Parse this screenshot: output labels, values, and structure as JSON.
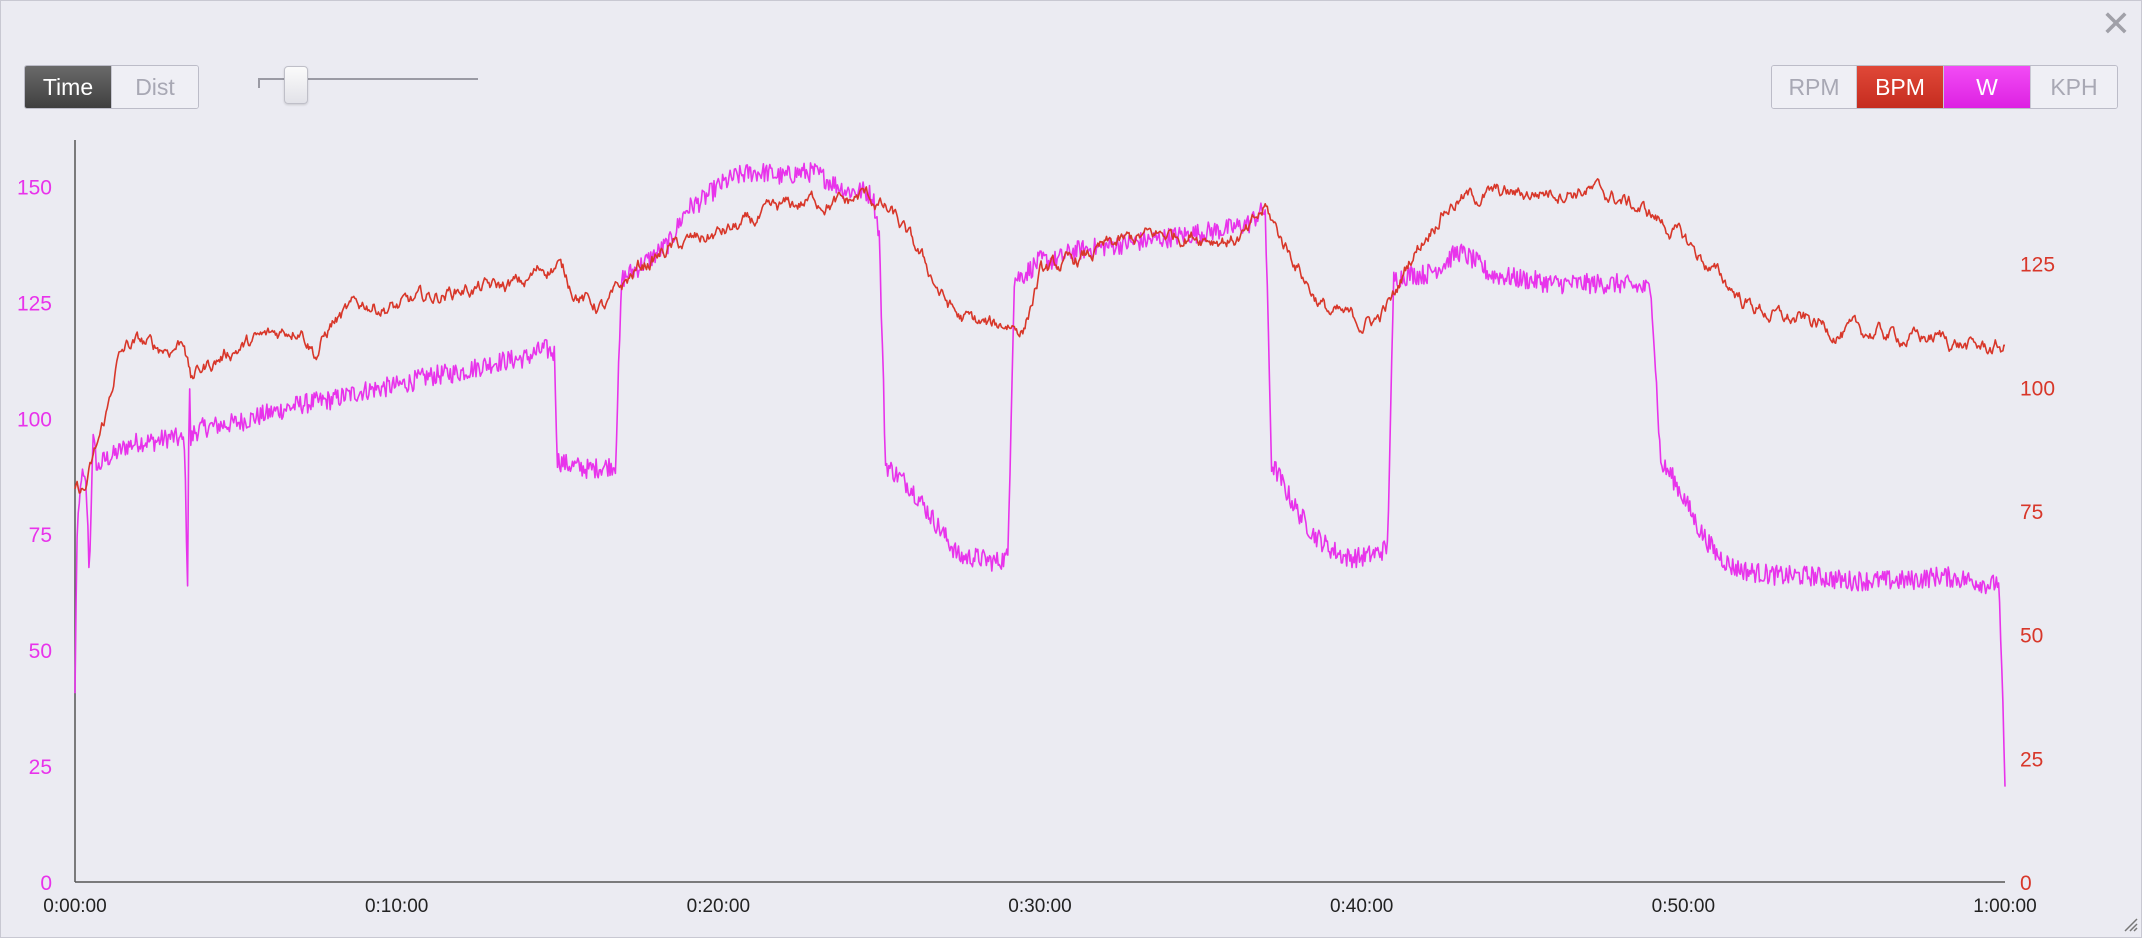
{
  "toolbar": {
    "mode_buttons": [
      {
        "label": "Time",
        "active": true
      },
      {
        "label": "Dist",
        "active": false
      }
    ],
    "metric_buttons": [
      {
        "label": "RPM",
        "active": false,
        "color": "#efeff5"
      },
      {
        "label": "BPM",
        "active": true,
        "color": "#d8372a"
      },
      {
        "label": "W",
        "active": true,
        "color": "#e833eb"
      },
      {
        "label": "KPH",
        "active": false,
        "color": "#efeff5"
      }
    ],
    "slider_value": 0.13
  },
  "colors": {
    "power": "#e833eb",
    "heart_rate": "#d8372a",
    "axis": "#555555",
    "background": "#ebebf2"
  },
  "icons": {
    "close": "close-icon",
    "resize": "resize-grip-icon"
  },
  "chart_data": {
    "type": "line",
    "x_unit": "minutes",
    "x_range": [
      0,
      60
    ],
    "x_ticks": [
      0,
      10,
      20,
      30,
      40,
      50,
      60
    ],
    "x_tick_labels": [
      "0:00:00",
      "0:10:00",
      "0:20:00",
      "0:30:00",
      "0:40:00",
      "0:50:00",
      "1:00:00"
    ],
    "left_axis": {
      "range": [
        0,
        160
      ],
      "ticks": [
        0,
        25,
        50,
        75,
        100,
        125,
        150
      ],
      "tick_labels": [
        "0",
        "25",
        "50",
        "75",
        "100",
        "125",
        "150"
      ],
      "color": "#e833eb"
    },
    "right_axis": {
      "range": [
        0,
        150
      ],
      "ticks": [
        0,
        25,
        50,
        75,
        100,
        125
      ],
      "tick_labels": [
        "0",
        "25",
        "50",
        "75",
        "100",
        "125"
      ],
      "color": "#d8372a"
    },
    "series": [
      {
        "name": "W",
        "axis": "left",
        "color": "#e833eb",
        "x": [
          0,
          0.05,
          0.2,
          0.35,
          0.45,
          0.55,
          0.7,
          0.9,
          1.2,
          1.6,
          2.0,
          2.5,
          3.0,
          3.4,
          3.5,
          3.55,
          3.6,
          3.7,
          4.0,
          5.0,
          6.0,
          7.0,
          8.0,
          9.0,
          10.0,
          11.0,
          12.0,
          13.0,
          14.0,
          14.6,
          14.9,
          15.0,
          15.3,
          16.0,
          16.8,
          17.0,
          17.2,
          17.6,
          18.0,
          18.5,
          19.0,
          19.5,
          20.0,
          20.5,
          21.0,
          21.5,
          22.0,
          22.5,
          23.0,
          23.5,
          24.0,
          24.5,
          24.8,
          25.0,
          25.2,
          26.0,
          26.5,
          27.0,
          27.5,
          28.0,
          28.6,
          29.0,
          29.2,
          29.5,
          30.0,
          30.5,
          31.0,
          32.0,
          33.0,
          34.0,
          35.0,
          36.0,
          36.5,
          36.8,
          37.0,
          37.2,
          37.4,
          37.6,
          38.0,
          38.5,
          39.0,
          39.5,
          40.0,
          40.5,
          40.8,
          41.0,
          41.5,
          42.0,
          42.5,
          43.0,
          43.5,
          44.0,
          45.0,
          46.0,
          47.0,
          48.0,
          48.8,
          49.0,
          49.3,
          49.6,
          50.0,
          50.5,
          51.0,
          51.5,
          52.0,
          53.0,
          54.0,
          55.0,
          56.0,
          57.0,
          58.0,
          59.0,
          59.6,
          59.8,
          59.9,
          60.0
        ],
        "y": [
          40,
          72,
          88,
          85,
          66,
          96,
          89,
          91,
          92,
          94,
          95,
          95,
          96,
          95,
          65,
          110,
          95,
          97,
          98,
          99,
          101,
          103,
          104,
          106,
          107,
          109,
          110,
          112,
          113,
          115,
          114,
          91,
          90,
          89,
          90,
          130,
          131,
          133,
          135,
          138,
          145,
          147,
          150,
          152,
          153,
          153,
          152,
          153,
          153,
          151,
          149,
          149,
          148,
          140,
          90,
          85,
          80,
          75,
          70,
          70,
          69,
          70,
          130,
          131,
          134,
          134,
          136,
          137,
          138,
          139,
          140,
          141,
          142,
          144,
          145,
          90,
          88,
          85,
          80,
          75,
          72,
          70,
          70,
          71,
          72,
          130,
          131,
          131,
          133,
          136,
          134,
          131,
          130,
          129,
          129,
          129,
          128,
          128,
          90,
          88,
          83,
          76,
          71,
          68,
          67,
          66,
          66,
          65,
          65,
          65,
          66,
          65,
          64,
          65,
          45,
          20
        ],
        "noise": 2.2
      },
      {
        "name": "BPM",
        "axis": "right",
        "color": "#d8372a",
        "x": [
          0,
          0.3,
          0.7,
          1.0,
          1.3,
          1.6,
          2.0,
          2.5,
          3.0,
          3.4,
          3.6,
          4.0,
          4.5,
          5.0,
          6.0,
          7.0,
          7.5,
          8.0,
          9.0,
          10.0,
          11.0,
          12.0,
          13.0,
          14.0,
          14.5,
          15.0,
          15.5,
          16.0,
          16.5,
          17.0,
          17.5,
          18.0,
          18.5,
          19.0,
          19.5,
          20.0,
          21.0,
          22.0,
          23.0,
          24.0,
          24.5,
          25.0,
          25.5,
          26.0,
          26.5,
          27.0,
          27.5,
          28.0,
          28.5,
          29.0,
          29.5,
          30.0,
          31.0,
          32.0,
          33.0,
          34.0,
          35.0,
          36.0,
          36.5,
          37.0,
          37.5,
          38.0,
          38.5,
          39.0,
          39.5,
          40.0,
          40.5,
          41.0,
          41.5,
          42.0,
          42.5,
          43.0,
          44.0,
          45.0,
          46.0,
          47.0,
          48.0,
          49.0,
          50.0,
          51.0,
          52.0,
          53.0,
          54.0,
          55.0,
          56.0,
          57.0,
          58.0,
          59.0,
          59.5,
          60.0
        ],
        "y": [
          80,
          79,
          88,
          95,
          105,
          108,
          109,
          108,
          108,
          110,
          102,
          104,
          106,
          108,
          110,
          113,
          107,
          113,
          117,
          116,
          118,
          120,
          120,
          121,
          124,
          125,
          120,
          117,
          116,
          120,
          124,
          126,
          128,
          129,
          130,
          131,
          133,
          136,
          138,
          137,
          139,
          137,
          134,
          129,
          124,
          118,
          114,
          113,
          112,
          113,
          112,
          123,
          125,
          128,
          130,
          131,
          131,
          130,
          131,
          136,
          130,
          125,
          119,
          115,
          114,
          113,
          114,
          118,
          126,
          131,
          136,
          138,
          139,
          139,
          140,
          140,
          138,
          135,
          130,
          123,
          117,
          114,
          113,
          111,
          111,
          110,
          110,
          108,
          108,
          108
        ],
        "noise": 1.2
      }
    ]
  }
}
